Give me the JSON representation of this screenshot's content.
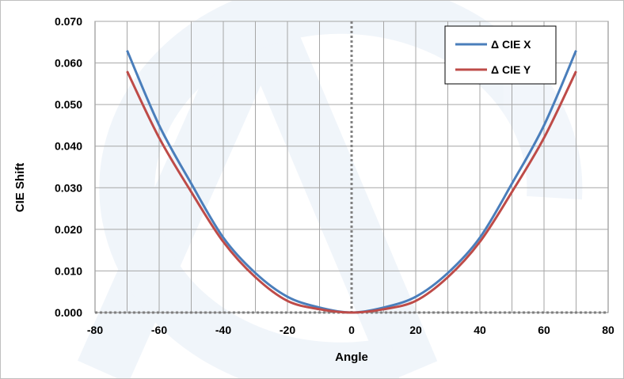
{
  "chart_data": {
    "type": "line",
    "title": "",
    "xlabel": "Angle",
    "ylabel": "CIE Shift",
    "xlim": [
      -80,
      80
    ],
    "ylim": [
      0,
      0.07
    ],
    "x_ticks": [
      -80,
      -60,
      -40,
      -20,
      0,
      20,
      40,
      60,
      80
    ],
    "x_tick_labels": [
      "-80",
      "-60",
      "-40",
      "-20",
      "0",
      "20",
      "40",
      "60",
      "80"
    ],
    "y_ticks": [
      0,
      0.01,
      0.02,
      0.03,
      0.04,
      0.05,
      0.06,
      0.07
    ],
    "y_tick_labels": [
      "0.000",
      "0.010",
      "0.020",
      "0.030",
      "0.040",
      "0.050",
      "0.060",
      "0.070"
    ],
    "grid": true,
    "x_minor_gridlines_every": 10,
    "zero_reference_lines": "dotted gray at x=0 and y=0",
    "legend_position": "top-right",
    "series": [
      {
        "name": "Δ CIE X",
        "color": "#4A7EBB",
        "x": [
          -70,
          -60,
          -50,
          -40,
          -30,
          -20,
          -10,
          0,
          10,
          20,
          30,
          40,
          50,
          60,
          70
        ],
        "y": [
          0.063,
          0.045,
          0.031,
          0.018,
          0.0095,
          0.0038,
          0.0012,
          0.0,
          0.0012,
          0.0038,
          0.0095,
          0.018,
          0.031,
          0.045,
          0.063
        ]
      },
      {
        "name": "Δ CIE Y",
        "color": "#BE4B48",
        "x": [
          -70,
          -60,
          -50,
          -40,
          -30,
          -20,
          -10,
          0,
          10,
          20,
          30,
          40,
          50,
          60,
          70
        ],
        "y": [
          0.058,
          0.042,
          0.029,
          0.017,
          0.0085,
          0.0028,
          0.0008,
          0.0,
          0.0008,
          0.0028,
          0.0085,
          0.017,
          0.029,
          0.042,
          0.058
        ]
      }
    ]
  }
}
